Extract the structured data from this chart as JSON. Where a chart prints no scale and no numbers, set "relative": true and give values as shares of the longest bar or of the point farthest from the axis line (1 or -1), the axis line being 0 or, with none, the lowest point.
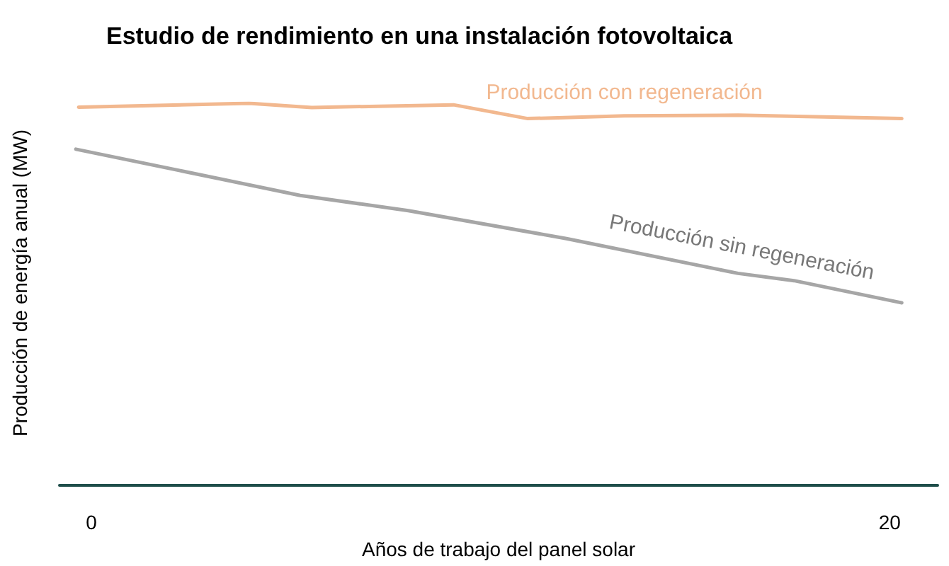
{
  "chart_data": {
    "type": "line",
    "title": "Estudio de rendimiento en una instalación fotovoltaica",
    "xlabel": "Años de trabajo del panel solar",
    "ylabel": "Producción de energía anual (MW)",
    "relative": true,
    "xlim": [
      -0.8,
      21.2
    ],
    "xticks": [
      0,
      20
    ],
    "grid": false,
    "legend": false,
    "marker": "none",
    "series": [
      {
        "name": "Producción con regeneración",
        "color": "#f2b88f",
        "x": [
          -0.32,
          3.95,
          5.52,
          9.07,
          10.93,
          13.35,
          16.2,
          20.3
        ],
        "values": [
          0.99,
          1.0,
          0.989,
          0.996,
          0.96,
          0.967,
          0.969,
          0.96
        ]
      },
      {
        "name": "Producción sin regeneración",
        "color": "#a6a6a6",
        "x": [
          -0.39,
          5.23,
          7.94,
          11.9,
          16.2,
          17.6,
          20.3
        ],
        "values": [
          0.88,
          0.759,
          0.719,
          0.646,
          0.555,
          0.536,
          0.478
        ]
      }
    ]
  }
}
